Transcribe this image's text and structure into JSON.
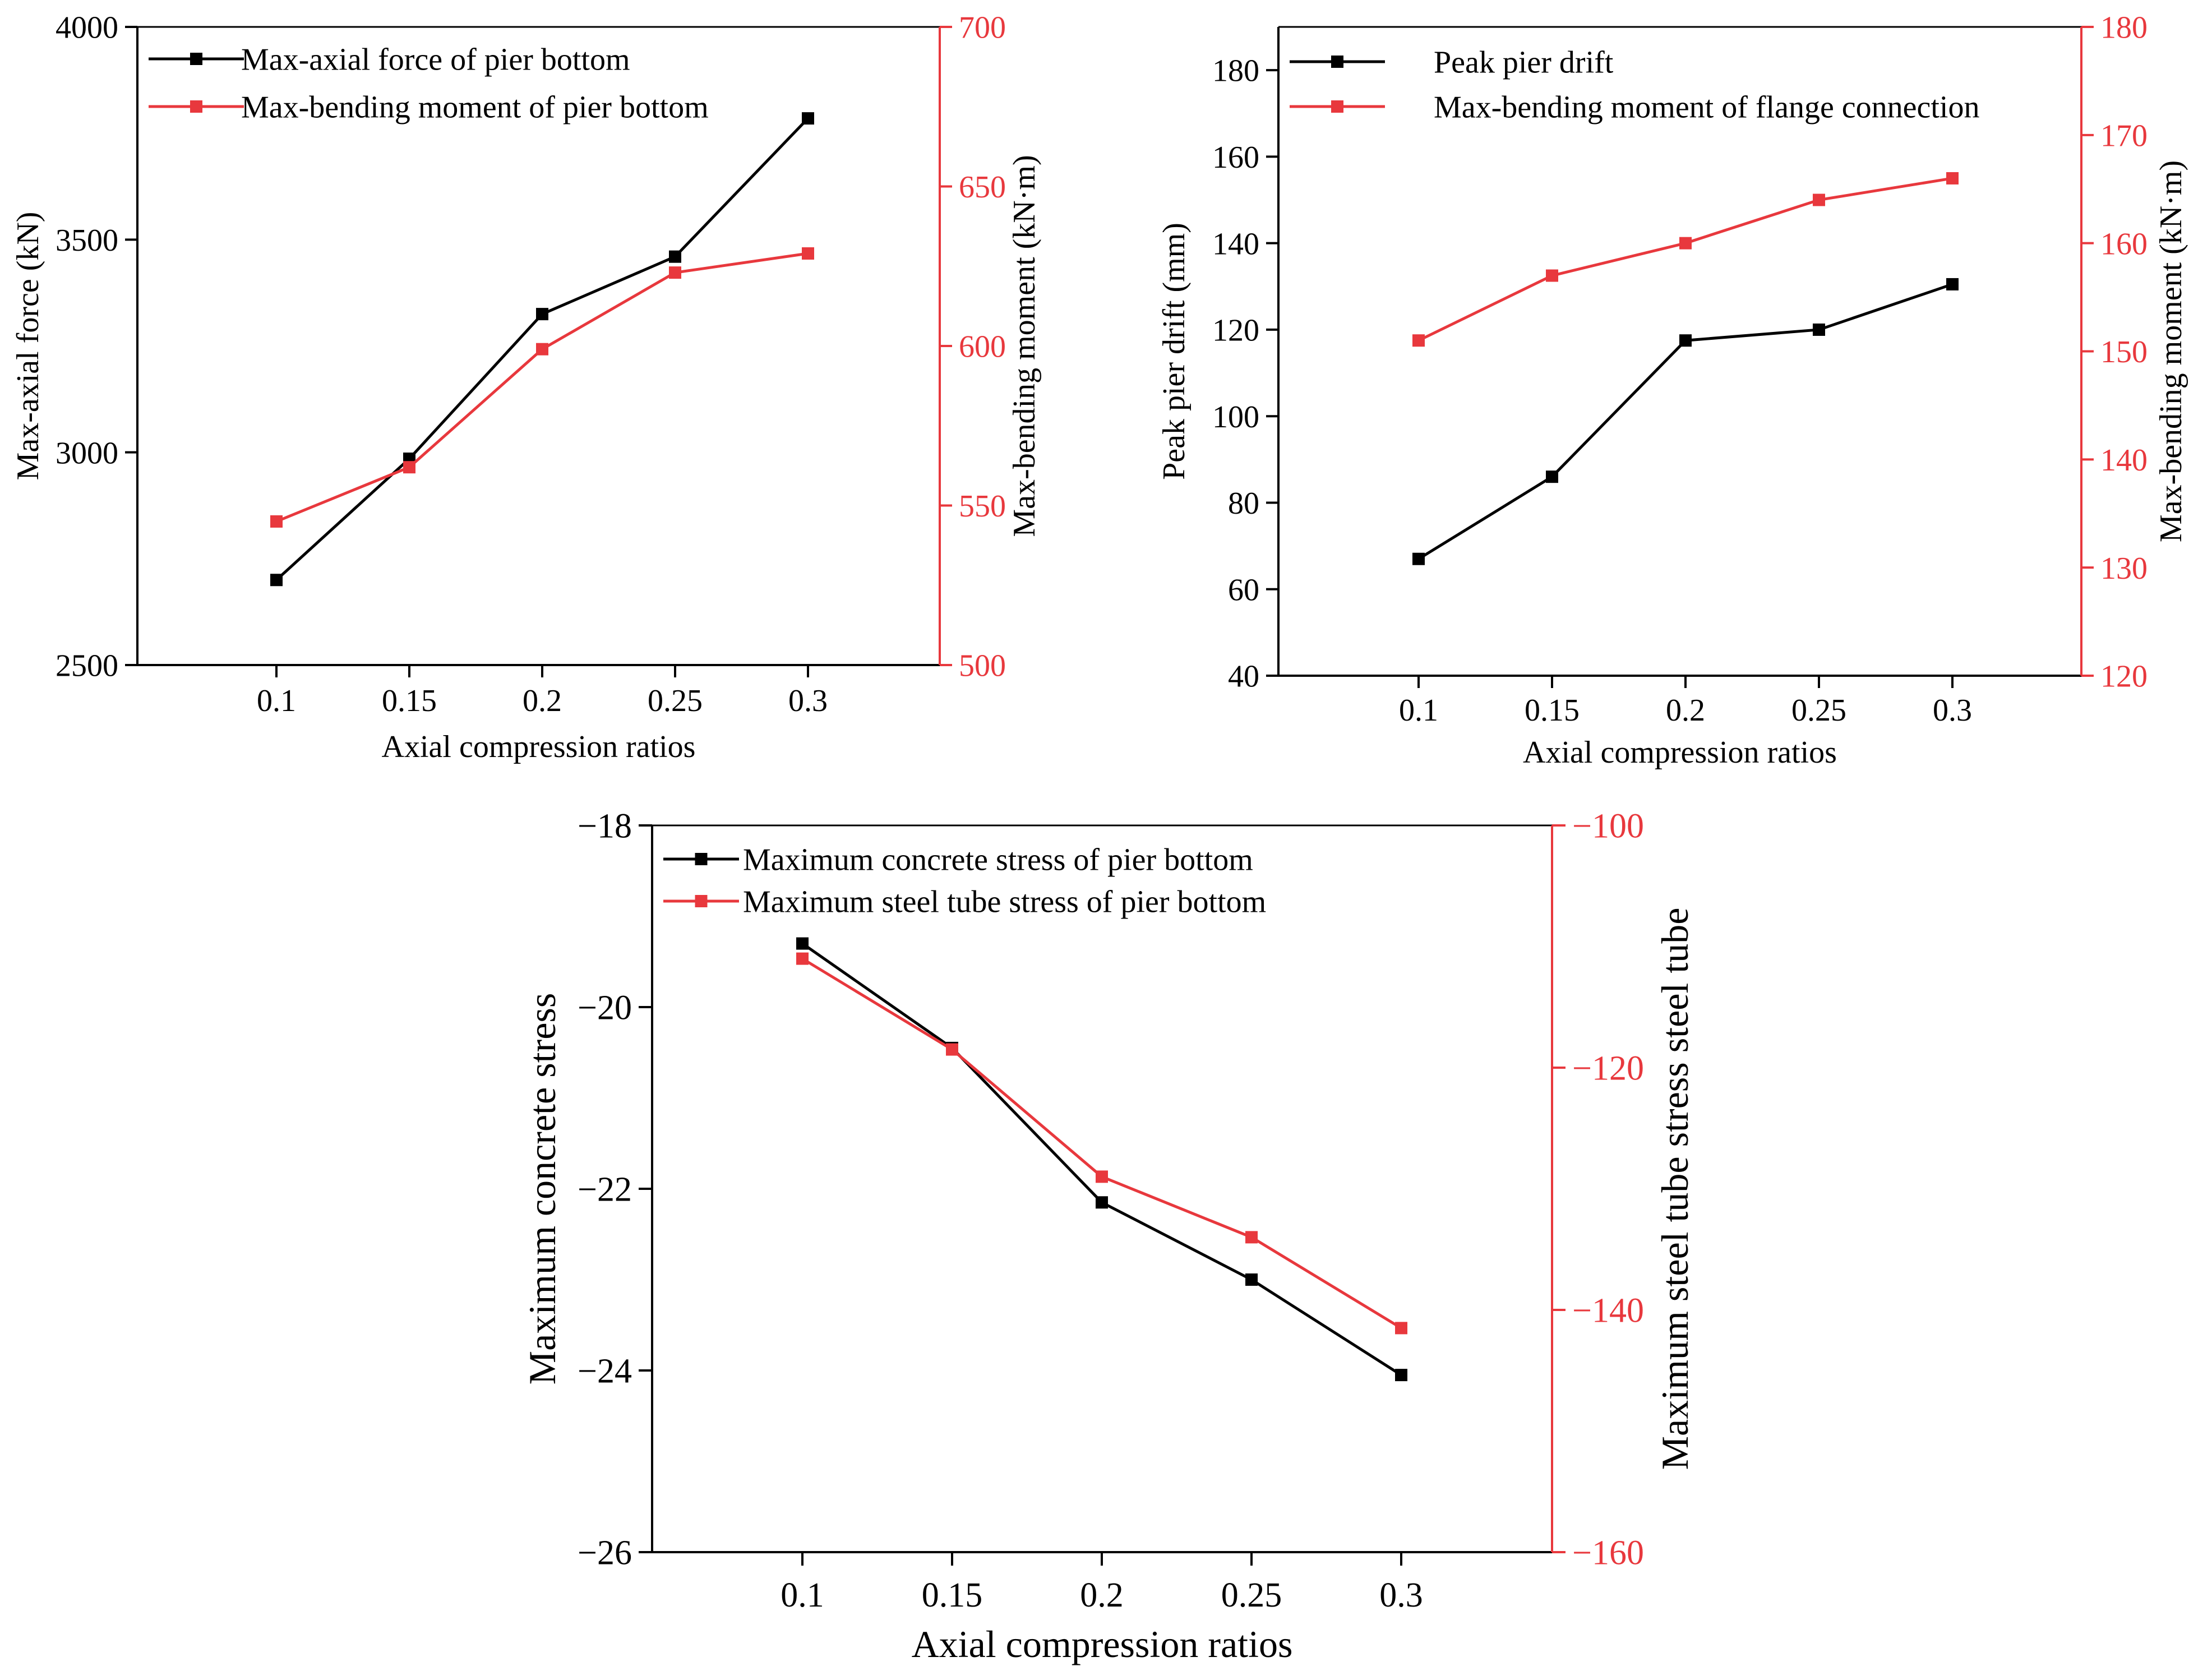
{
  "colors": {
    "black": "#000000",
    "red": "#e8383d"
  },
  "chart_data": [
    {
      "type": "line",
      "categories": [
        "0.1",
        "0.15",
        "0.2",
        "0.25",
        "0.3"
      ],
      "xlabel": "Axial compression ratios",
      "ylabel_left": "Max-axial force (kN)",
      "ylabel_right": "Max-bending moment (kN·m)",
      "ylim_left": [
        2500,
        4000
      ],
      "ylim_right": [
        500,
        700
      ],
      "yticks_left": [
        2500,
        3000,
        3500,
        4000
      ],
      "yticks_right": [
        500,
        550,
        600,
        650,
        700
      ],
      "legend_position": "top-left",
      "series": [
        {
          "name": "Max-axial force of pier bottom",
          "axis": "left",
          "color": "#000000",
          "values": [
            2700,
            2985,
            3325,
            3460,
            3785
          ]
        },
        {
          "name": "Max-bending moment of pier bottom",
          "axis": "right",
          "color": "#e8383d",
          "values": [
            545,
            562,
            599,
            623,
            629
          ]
        }
      ]
    },
    {
      "type": "line",
      "categories": [
        "0.1",
        "0.15",
        "0.2",
        "0.25",
        "0.3"
      ],
      "xlabel": "Axial compression ratios",
      "ylabel_left": "Peak pier drift (mm)",
      "ylabel_right": "Max-bending moment (kN·m)",
      "ylim_left": [
        40,
        190
      ],
      "ylim_right": [
        120,
        180
      ],
      "yticks_left": [
        40,
        60,
        80,
        100,
        120,
        140,
        160,
        180
      ],
      "yticks_right": [
        120,
        130,
        140,
        150,
        160,
        170,
        180
      ],
      "legend_position": "top-left",
      "series": [
        {
          "name": "Peak pier drift",
          "axis": "left",
          "color": "#000000",
          "values": [
            67,
            86,
            117.5,
            120,
            130.5
          ]
        },
        {
          "name": "Max-bending moment of flange connection",
          "axis": "right",
          "color": "#e8383d",
          "values": [
            151,
            157,
            160,
            164,
            166
          ]
        }
      ]
    },
    {
      "type": "line",
      "categories": [
        "0.1",
        "0.15",
        "0.2",
        "0.25",
        "0.3"
      ],
      "xlabel": "Axial compression ratios",
      "ylabel_left": "Maximum concrete stress",
      "ylabel_right": "Maximum steel tube stress steel tube",
      "ylim_left": [
        -26,
        -18
      ],
      "ylim_right": [
        -160,
        -100
      ],
      "yticks_left": [
        -26,
        -24,
        -22,
        -20,
        -18
      ],
      "yticks_right": [
        -160,
        -140,
        -120,
        -100
      ],
      "legend_position": "top-left",
      "series": [
        {
          "name": "Maximum concrete stress of pier bottom",
          "axis": "left",
          "color": "#000000",
          "values": [
            -19.3,
            -20.45,
            -22.15,
            -23.0,
            -24.05
          ]
        },
        {
          "name": "Maximum steel tube stress of pier bottom",
          "axis": "right",
          "color": "#e8383d",
          "values": [
            -111,
            -118.5,
            -129,
            -134,
            -141.5
          ]
        }
      ]
    }
  ]
}
